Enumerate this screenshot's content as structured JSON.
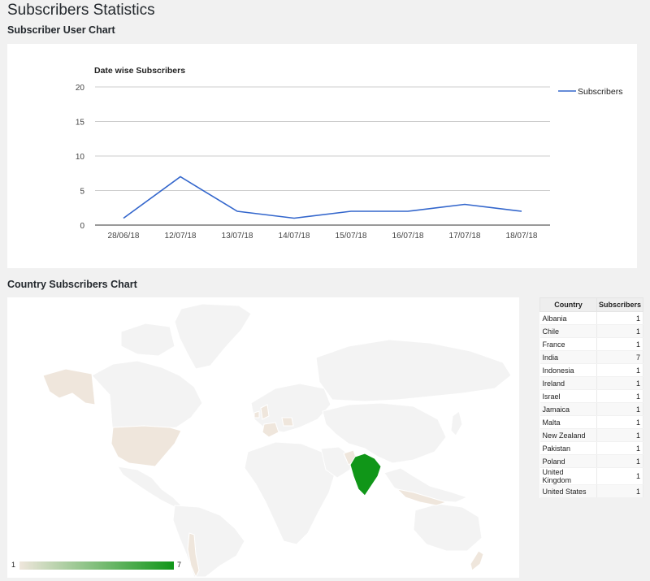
{
  "page": {
    "title": "Subscribers Statistics",
    "line_section_title": "Subscriber User Chart",
    "map_section_title": "Country Subscribers Chart"
  },
  "colors": {
    "line": "#3366cc",
    "map_land": "#f3f3f3",
    "map_low": "#efe6dc",
    "map_high": "#109618"
  },
  "chart_data": [
    {
      "type": "line",
      "title": "Date wise Subscribers",
      "categories": [
        "28/06/18",
        "12/07/18",
        "13/07/18",
        "14/07/18",
        "15/07/18",
        "16/07/18",
        "17/07/18",
        "18/07/18"
      ],
      "series": [
        {
          "name": "Subscribers",
          "values": [
            1,
            7,
            2,
            1,
            2,
            2,
            3,
            2
          ]
        }
      ],
      "ylim": [
        0,
        20
      ],
      "yticks": [
        0,
        5,
        10,
        15,
        20
      ],
      "grid": true,
      "legend": "right"
    }
  ],
  "geo": {
    "table": {
      "headers": [
        "Country",
        "Subscribers"
      ],
      "rows": [
        [
          "Albania",
          "1"
        ],
        [
          "Chile",
          "1"
        ],
        [
          "France",
          "1"
        ],
        [
          "India",
          "7"
        ],
        [
          "Indonesia",
          "1"
        ],
        [
          "Ireland",
          "1"
        ],
        [
          "Israel",
          "1"
        ],
        [
          "Jamaica",
          "1"
        ],
        [
          "Malta",
          "1"
        ],
        [
          "New Zealand",
          "1"
        ],
        [
          "Pakistan",
          "1"
        ],
        [
          "Poland",
          "1"
        ],
        [
          "United Kingdom",
          "1"
        ],
        [
          "United States",
          "1"
        ]
      ]
    },
    "scale": {
      "min": "1",
      "max": "7"
    }
  }
}
